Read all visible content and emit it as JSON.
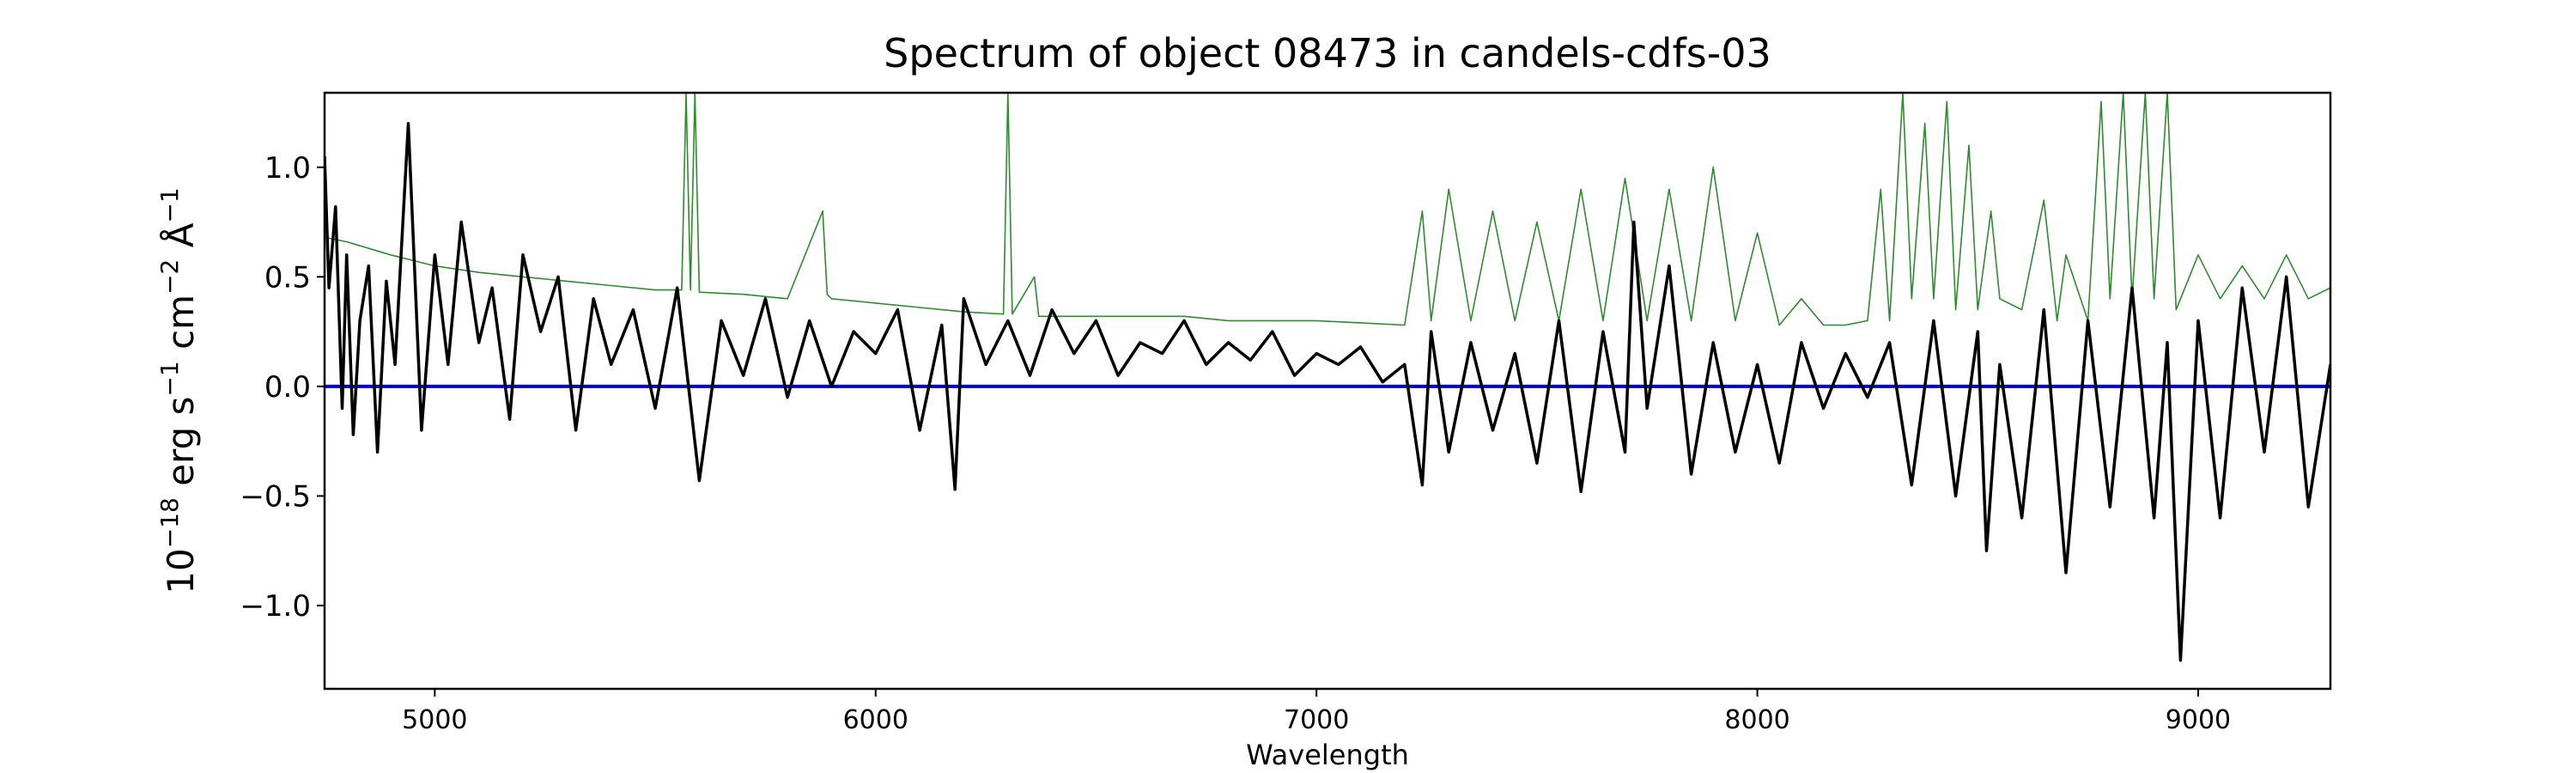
{
  "chart_data": {
    "type": "line",
    "title": "Spectrum of object 08473 in candels-cdfs-03",
    "xlabel": "Wavelength",
    "ylabel_parts": {
      "base": "10",
      "exp1": "−18",
      "unit1": " erg s",
      "exp2": "−1",
      "unit2": " cm",
      "exp3": "−2",
      "unit3": " Å",
      "exp4": "−1"
    },
    "xlim": [
      4750,
      9300
    ],
    "ylim": [
      -1.38,
      1.34
    ],
    "x_ticks": [
      5000,
      6000,
      7000,
      8000,
      9000
    ],
    "x_tick_labels": [
      "5000",
      "6000",
      "7000",
      "8000",
      "9000"
    ],
    "y_ticks": [
      1.0,
      0.5,
      0.0,
      -0.5,
      -1.0
    ],
    "y_tick_labels": [
      "1.0",
      "0.5",
      "0.0",
      "−0.5",
      "−1.0"
    ],
    "grid": false,
    "legend": "none",
    "colors": {
      "flux": "#000000",
      "noise": "#2e8b2e",
      "zero": "#0000cc"
    },
    "series": [
      {
        "role": "flux",
        "x": [
          4750,
          4760,
          4775,
          4790,
          4800,
          4815,
          4830,
          4850,
          4870,
          4890,
          4910,
          4940,
          4970,
          5000,
          5030,
          5060,
          5100,
          5130,
          5170,
          5200,
          5240,
          5280,
          5320,
          5360,
          5400,
          5450,
          5500,
          5550,
          5600,
          5650,
          5700,
          5750,
          5800,
          5850,
          5900,
          5950,
          6000,
          6050,
          6100,
          6150,
          6180,
          6200,
          6250,
          6300,
          6350,
          6400,
          6450,
          6500,
          6550,
          6600,
          6650,
          6700,
          6750,
          6800,
          6850,
          6900,
          6950,
          7000,
          7050,
          7100,
          7150,
          7200,
          7240,
          7260,
          7300,
          7350,
          7400,
          7450,
          7500,
          7550,
          7600,
          7650,
          7700,
          7720,
          7750,
          7800,
          7850,
          7900,
          7950,
          8000,
          8050,
          8100,
          8150,
          8200,
          8250,
          8300,
          8350,
          8400,
          8450,
          8500,
          8520,
          8550,
          8600,
          8650,
          8700,
          8750,
          8800,
          8850,
          8900,
          8930,
          8960,
          9000,
          9050,
          9100,
          9150,
          9200,
          9250,
          9300
        ],
        "y": [
          1.05,
          0.45,
          0.82,
          -0.1,
          0.6,
          -0.22,
          0.3,
          0.55,
          -0.3,
          0.48,
          0.1,
          1.2,
          -0.2,
          0.6,
          0.1,
          0.75,
          0.2,
          0.45,
          -0.15,
          0.6,
          0.25,
          0.5,
          -0.2,
          0.4,
          0.1,
          0.35,
          -0.1,
          0.45,
          -0.43,
          0.3,
          0.05,
          0.4,
          -0.05,
          0.3,
          0.0,
          0.25,
          0.15,
          0.35,
          -0.2,
          0.28,
          -0.47,
          0.4,
          0.1,
          0.3,
          0.05,
          0.35,
          0.15,
          0.3,
          0.05,
          0.2,
          0.15,
          0.3,
          0.1,
          0.2,
          0.12,
          0.25,
          0.05,
          0.15,
          0.1,
          0.18,
          0.02,
          0.1,
          -0.45,
          0.25,
          -0.3,
          0.2,
          -0.2,
          0.15,
          -0.35,
          0.3,
          -0.48,
          0.25,
          -0.3,
          0.75,
          -0.1,
          0.55,
          -0.4,
          0.2,
          -0.3,
          0.1,
          -0.35,
          0.2,
          -0.1,
          0.15,
          -0.05,
          0.2,
          -0.45,
          0.3,
          -0.5,
          0.25,
          -0.75,
          0.1,
          -0.6,
          0.35,
          -0.85,
          0.3,
          -0.55,
          0.45,
          -0.6,
          0.2,
          -1.25,
          0.3,
          -0.6,
          0.45,
          -0.3,
          0.5,
          -0.55,
          0.1
        ]
      },
      {
        "role": "noise",
        "x": [
          4750,
          4800,
          4900,
          5000,
          5100,
          5200,
          5300,
          5400,
          5500,
          5560,
          5570,
          5580,
          5590,
          5600,
          5700,
          5800,
          5880,
          5890,
          5900,
          6000,
          6100,
          6200,
          6290,
          6300,
          6310,
          6360,
          6370,
          6380,
          6400,
          6500,
          6600,
          6700,
          6800,
          6900,
          7000,
          7100,
          7200,
          7240,
          7260,
          7300,
          7350,
          7400,
          7450,
          7500,
          7550,
          7600,
          7650,
          7700,
          7750,
          7800,
          7850,
          7900,
          7950,
          8000,
          8050,
          8100,
          8150,
          8200,
          8250,
          8280,
          8300,
          8330,
          8350,
          8380,
          8400,
          8430,
          8450,
          8480,
          8500,
          8530,
          8550,
          8600,
          8650,
          8680,
          8700,
          8750,
          8780,
          8800,
          8830,
          8850,
          8880,
          8900,
          8930,
          8950,
          9000,
          9050,
          9100,
          9150,
          9200,
          9250,
          9300
        ],
        "y": [
          0.68,
          0.66,
          0.6,
          0.55,
          0.52,
          0.5,
          0.48,
          0.46,
          0.44,
          0.44,
          1.34,
          0.44,
          1.34,
          0.43,
          0.42,
          0.4,
          0.8,
          0.42,
          0.4,
          0.38,
          0.36,
          0.34,
          0.33,
          1.34,
          0.33,
          0.5,
          0.32,
          0.32,
          0.32,
          0.32,
          0.32,
          0.32,
          0.3,
          0.3,
          0.3,
          0.29,
          0.28,
          0.8,
          0.3,
          0.9,
          0.3,
          0.8,
          0.3,
          0.75,
          0.3,
          0.9,
          0.3,
          0.95,
          0.3,
          0.9,
          0.3,
          1.0,
          0.3,
          0.7,
          0.28,
          0.4,
          0.28,
          0.28,
          0.3,
          0.9,
          0.3,
          1.34,
          0.4,
          1.2,
          0.4,
          1.3,
          0.35,
          1.1,
          0.35,
          0.8,
          0.4,
          0.35,
          0.85,
          0.3,
          0.6,
          0.3,
          1.3,
          0.4,
          1.34,
          0.4,
          1.34,
          0.4,
          1.34,
          0.35,
          0.6,
          0.4,
          0.55,
          0.4,
          0.6,
          0.4,
          0.45
        ]
      },
      {
        "role": "zero",
        "x": [
          4750,
          9300
        ],
        "y": [
          0.0,
          0.0
        ]
      }
    ]
  }
}
